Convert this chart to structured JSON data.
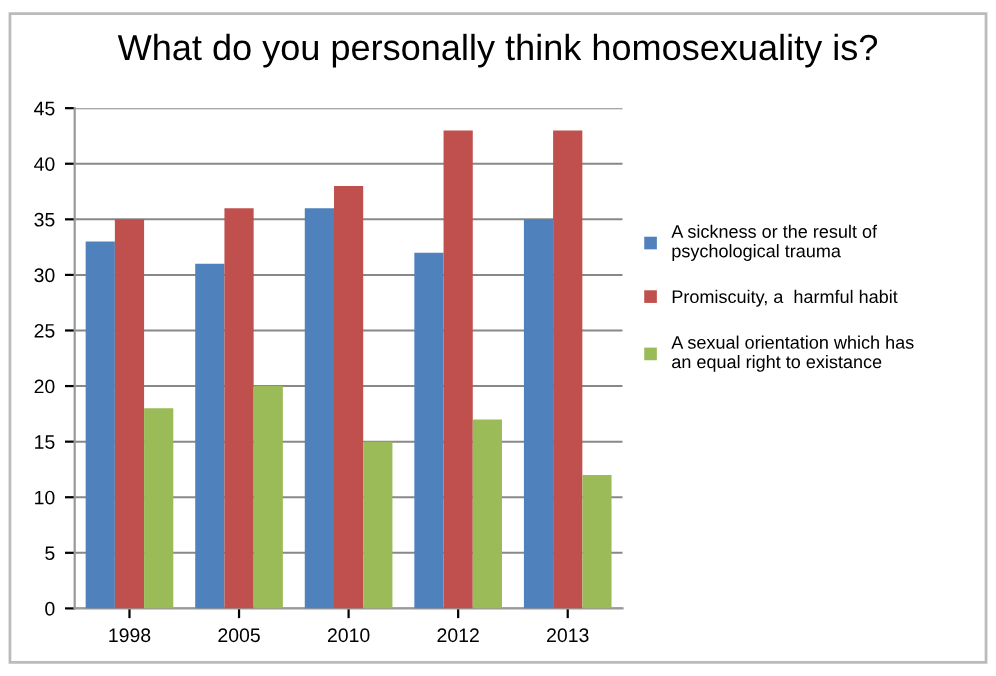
{
  "chart_data": {
    "type": "bar",
    "title": "What do you personally think homosexuality is?",
    "categories": [
      "1998",
      "2005",
      "2010",
      "2012",
      "2013"
    ],
    "series": [
      {
        "name": "A sickness or the result of psychological trauma",
        "color": "#4f81bd",
        "values": [
          33,
          31,
          36,
          32,
          35
        ]
      },
      {
        "name": "Promiscuity, a  harmful habit",
        "color": "#c0504d",
        "values": [
          35,
          36,
          38,
          43,
          43
        ]
      },
      {
        "name": "A sexual orientation which has an equal right to existance",
        "color": "#9bbb59",
        "values": [
          18,
          20,
          15,
          17,
          12
        ]
      }
    ],
    "ylim": [
      0,
      45
    ],
    "yticks": [
      0,
      5,
      10,
      15,
      20,
      25,
      30,
      35,
      40,
      45
    ],
    "grid": "y",
    "legend": "right"
  }
}
